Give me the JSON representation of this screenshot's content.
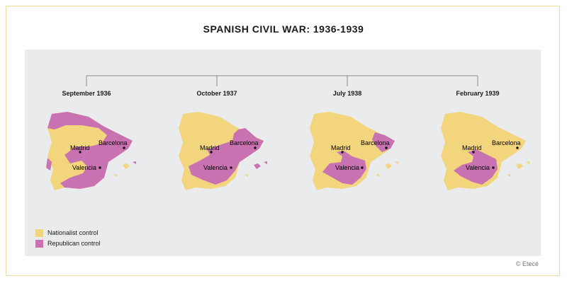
{
  "title": "SPANISH CIVIL WAR: 1936-1939",
  "colors": {
    "nationalist": "#f2d57c",
    "republican": "#c972b1",
    "panel": "#eaebec",
    "border": "#f0dca0"
  },
  "maps": [
    {
      "label": "September 1936",
      "cities": {
        "madrid": "Madrid",
        "barcelona": "Barcelona",
        "valencia": "Valencia"
      }
    },
    {
      "label": "October 1937",
      "cities": {
        "madrid": "Madrid",
        "barcelona": "Barcelona",
        "valencia": "Valencia"
      }
    },
    {
      "label": "July 1938",
      "cities": {
        "madrid": "Madrid",
        "barcelona": "Barcelona",
        "valencia": "Valencia"
      }
    },
    {
      "label": "February 1939",
      "cities": {
        "madrid": "Madrid",
        "barcelona": "Barcelona",
        "valencia": "Valencia"
      }
    }
  ],
  "legend": [
    {
      "label": "Nationalist control",
      "color": "#f2d57c"
    },
    {
      "label": "Republican control",
      "color": "#c972b1"
    }
  ],
  "credit": "© Etecé"
}
